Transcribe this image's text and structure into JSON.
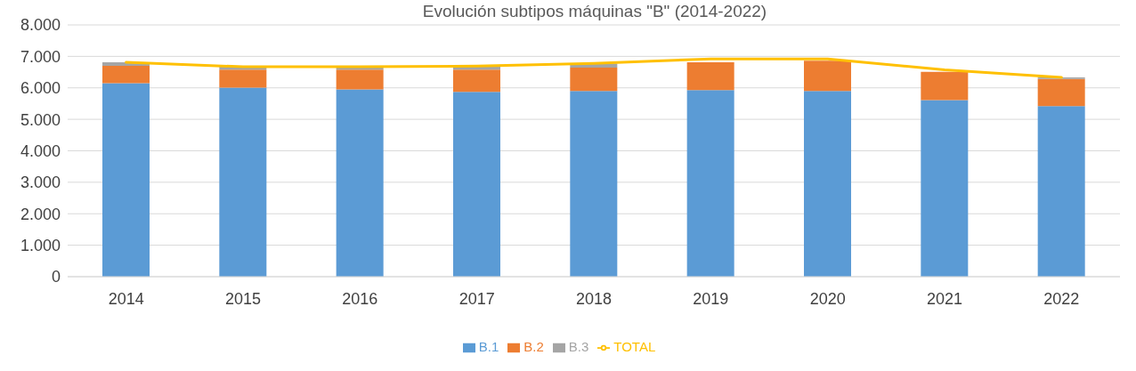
{
  "chart_data": {
    "type": "bar",
    "title": "Evolución subtipos máquinas \"B\" (2014-2022)",
    "categories": [
      "2014",
      "2015",
      "2016",
      "2017",
      "2018",
      "2019",
      "2020",
      "2021",
      "2022"
    ],
    "stacked": true,
    "series": [
      {
        "name": "B.1",
        "color": "#5b9bd5",
        "values": [
          6150,
          6010,
          5950,
          5870,
          5900,
          5930,
          5900,
          5610,
          5420
        ]
      },
      {
        "name": "B.2",
        "color": "#ed7d31",
        "values": [
          550,
          570,
          630,
          710,
          740,
          880,
          960,
          900,
          860
        ]
      },
      {
        "name": "B.3",
        "color": "#a5a5a5",
        "values": [
          110,
          90,
          90,
          110,
          140,
          null,
          null,
          null,
          50
        ]
      },
      {
        "name": "TOTAL",
        "type": "line",
        "color": "#ffc000",
        "values": [
          6810,
          6670,
          6670,
          6690,
          6780,
          6920,
          6920,
          6570,
          6330
        ]
      }
    ],
    "ylim": [
      0,
      8000
    ],
    "yticks": [
      {
        "value": 0,
        "label": "0"
      },
      {
        "value": 1000,
        "label": "1.000"
      },
      {
        "value": 2000,
        "label": "2.000"
      },
      {
        "value": 3000,
        "label": "3.000"
      },
      {
        "value": 4000,
        "label": "4.000"
      },
      {
        "value": 5000,
        "label": "5.000"
      },
      {
        "value": 6000,
        "label": "6.000"
      },
      {
        "value": 7000,
        "label": "7.000"
      },
      {
        "value": 8000,
        "label": "8.000"
      }
    ],
    "grid": "y",
    "legend": "bottom",
    "marker": "none"
  }
}
